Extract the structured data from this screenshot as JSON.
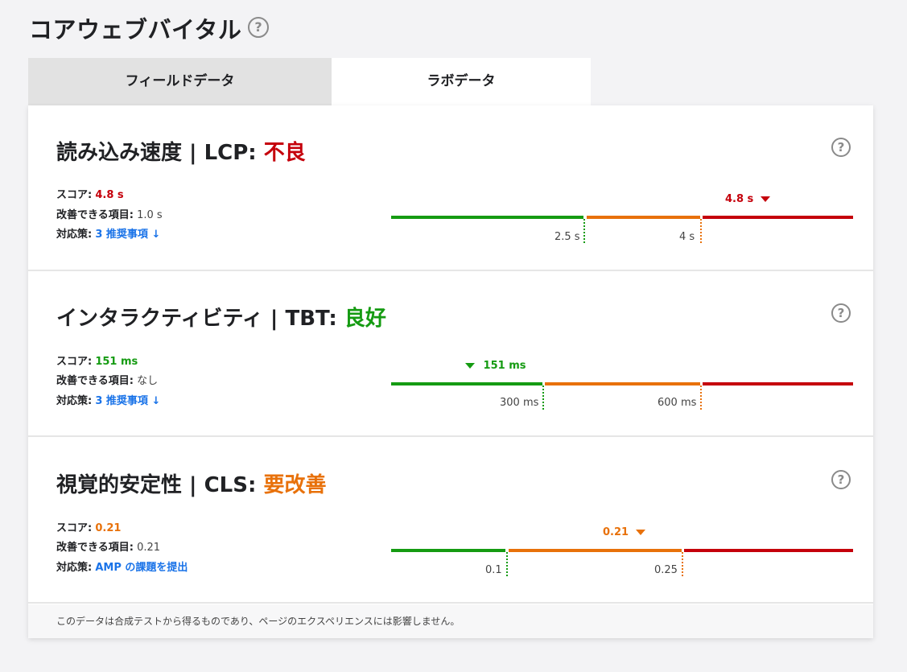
{
  "page": {
    "title": "コアウェブバイタル",
    "help": "?"
  },
  "tabs": [
    {
      "label": "フィールドデータ"
    },
    {
      "label": "ラボデータ"
    }
  ],
  "colors": {
    "good": "#159b12",
    "needs_improvement": "#e8710a",
    "poor": "#c5000b",
    "link": "#1a73e8"
  },
  "labels": {
    "score": "スコア:",
    "improve": "改善できる項目:",
    "action": "対応策:"
  },
  "metrics": [
    {
      "title": "読み込み速度 | LCP:",
      "status": "不良",
      "score": "4.8 s",
      "improve": "1.0 s",
      "action": "3 推奨事項 ↓",
      "marker": "4.8 s",
      "ticks": [
        "2.5 s",
        "4 s"
      ]
    },
    {
      "title": "インタラクティビティ | TBT:",
      "status": "良好",
      "score": "151 ms",
      "improve": "なし",
      "action": "3 推奨事項 ↓",
      "marker": "151 ms",
      "ticks": [
        "300 ms",
        "600 ms"
      ]
    },
    {
      "title": "視覚的安定性 | CLS:",
      "status": "要改善",
      "score": "0.21",
      "improve": "0.21",
      "action": "AMP の課題を提出",
      "marker": "0.21",
      "ticks": [
        "0.1",
        "0.25"
      ]
    }
  ],
  "footer": "このデータは合成テストから得るものであり、ページのエクスペリエンスには影響しません。"
}
